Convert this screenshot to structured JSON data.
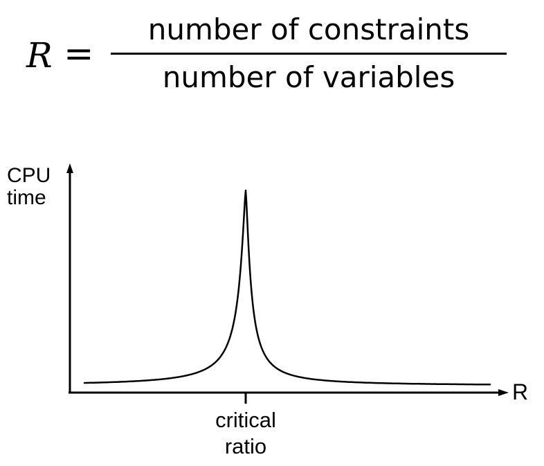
{
  "formula": {
    "lhs": "R",
    "equals": "=",
    "numerator": "number of constraints",
    "denominator": "number of variables"
  },
  "diagram": {
    "y_axis_label_line1": "CPU",
    "y_axis_label_line2": "time",
    "x_axis_label": "R",
    "tick_label_line1": "critical",
    "tick_label_line2": "ratio"
  }
}
